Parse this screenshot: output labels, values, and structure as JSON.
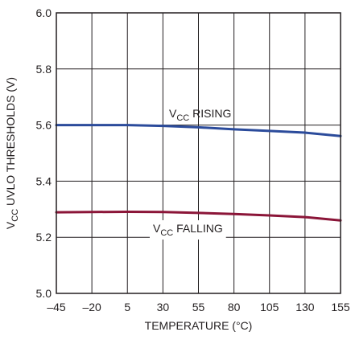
{
  "chart_data": {
    "type": "line",
    "xlabel": "TEMPERATURE (°C)",
    "ylabel": {
      "prefix": "V",
      "sub": "CC",
      "suffix": " UVLO THRESHOLDS (V)"
    },
    "xlim": [
      -45,
      155
    ],
    "ylim": [
      5.0,
      6.0
    ],
    "x_ticks": [
      -45,
      -20,
      5,
      30,
      55,
      80,
      105,
      130,
      155
    ],
    "x_tick_labels": [
      "–45",
      "–20",
      "5",
      "30",
      "55",
      "80",
      "105",
      "130",
      "155"
    ],
    "y_ticks": [
      5.0,
      5.2,
      5.4,
      5.6,
      5.8,
      6.0
    ],
    "y_tick_labels": [
      "5.0",
      "5.2",
      "5.4",
      "5.6",
      "5.8",
      "6.0"
    ],
    "grid": true,
    "series": [
      {
        "name": "VCC RISING",
        "label": {
          "prefix": "V",
          "sub": "CC",
          "suffix": " RISING"
        },
        "color": "#2b4b9b",
        "x": [
          -45,
          -20,
          5,
          30,
          55,
          80,
          105,
          130,
          155
        ],
        "y": [
          5.6,
          5.6,
          5.6,
          5.597,
          5.592,
          5.585,
          5.579,
          5.573,
          5.561
        ]
      },
      {
        "name": "VCC FALLING",
        "label": {
          "prefix": "V",
          "sub": "CC",
          "suffix": " FALLING"
        },
        "color": "#8b1538",
        "x": [
          -45,
          -20,
          5,
          30,
          55,
          80,
          105,
          130,
          155
        ],
        "y": [
          5.289,
          5.29,
          5.291,
          5.29,
          5.287,
          5.283,
          5.278,
          5.272,
          5.26
        ]
      }
    ]
  }
}
